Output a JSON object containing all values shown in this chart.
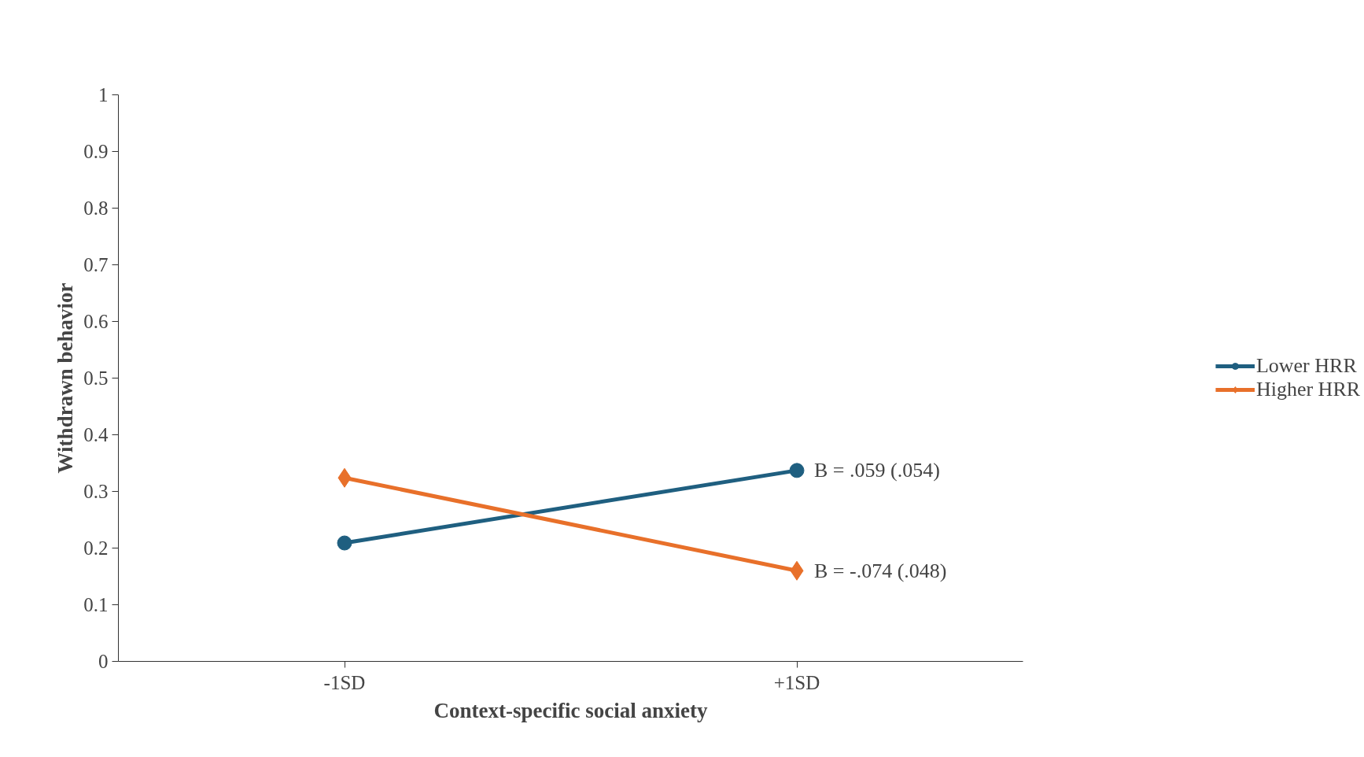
{
  "chart_data": {
    "type": "line",
    "xlabel": "Context-specific social anxiety",
    "ylabel": "Withdrawn behavior",
    "categories": [
      "-1SD",
      "+1SD"
    ],
    "series": [
      {
        "name": "Lower HRR",
        "color": "#1f5f80",
        "values": [
          0.209,
          0.337
        ],
        "marker": "circle"
      },
      {
        "name": "Higher HRR",
        "color": "#e8702a",
        "values": [
          0.324,
          0.16
        ],
        "marker": "diamond"
      }
    ],
    "ylim": [
      0,
      1
    ],
    "yticks": [
      0,
      0.1,
      0.2,
      0.3,
      0.4,
      0.5,
      0.6,
      0.7,
      0.8,
      0.9,
      1
    ],
    "grid": false,
    "legend": "right",
    "line_style": "solid",
    "annotations": [
      {
        "text": "B = .059 (.054)",
        "x": "+1SD",
        "y": 0.337
      },
      {
        "text": "B = -.074 (.048)",
        "x": "+1SD",
        "y": 0.16
      }
    ]
  }
}
